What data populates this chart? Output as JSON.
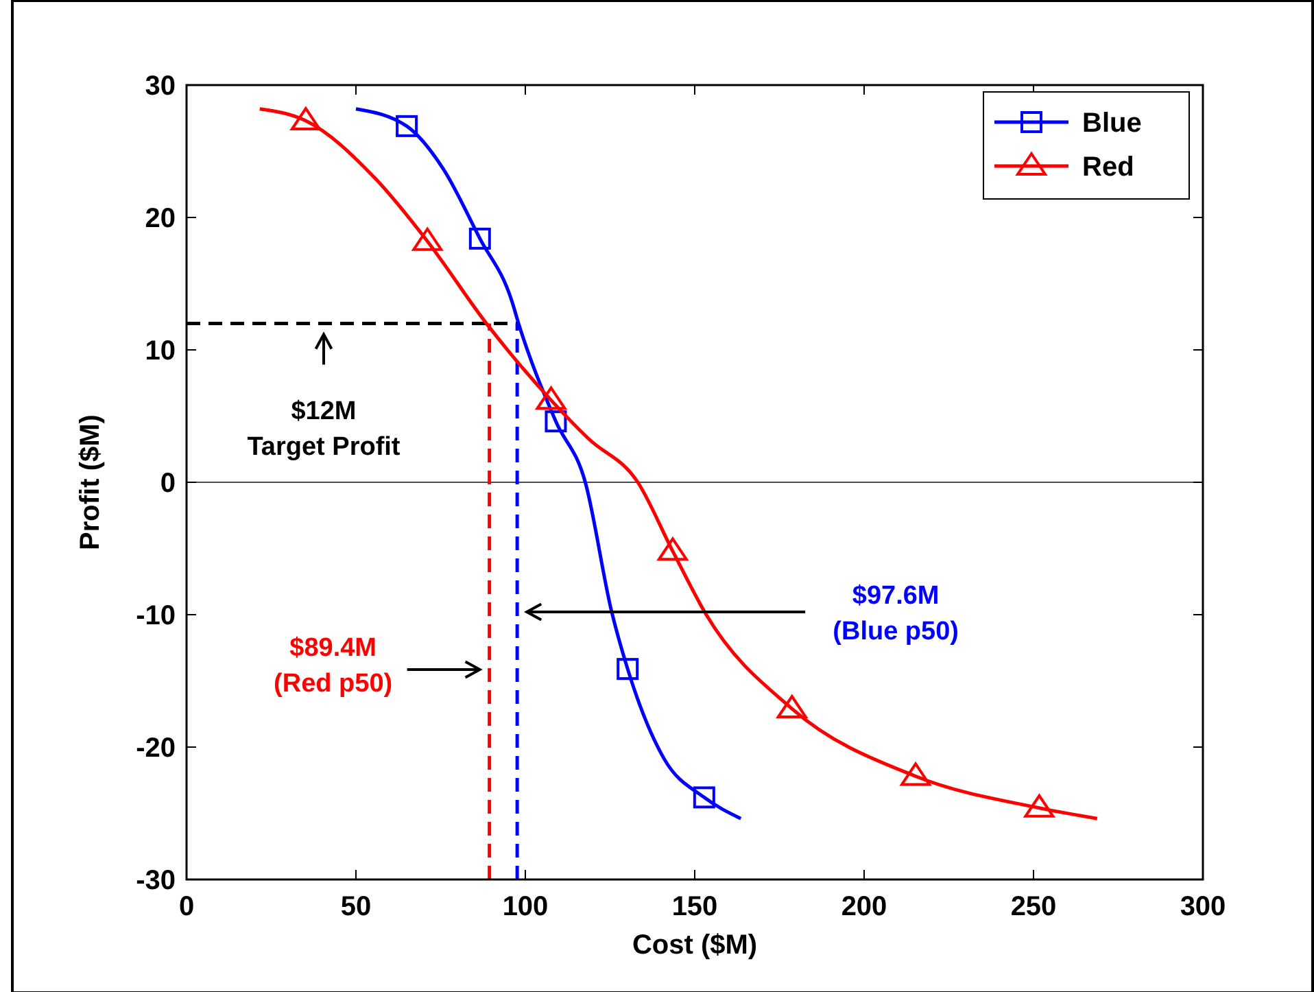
{
  "chart_data": {
    "type": "line",
    "xlabel": "Cost ($M)",
    "ylabel": "Profit ($M)",
    "xlim": [
      0,
      300
    ],
    "xticks": [
      0,
      50,
      100,
      150,
      200,
      250,
      300
    ],
    "ylim": [
      -30,
      30
    ],
    "yticks": [
      -30,
      -20,
      -10,
      0,
      10,
      20,
      30
    ],
    "grid": false,
    "legend": "top right",
    "line_style": "solid",
    "series": [
      {
        "name": "Blue",
        "color": "#0000ff",
        "x": [
          50,
          65,
          75.7,
          86.6,
          96,
          98,
          109,
          117.7,
          125.5,
          130.2,
          141,
          152.8,
          163.6
        ],
        "values": [
          28.2,
          26.9,
          23.7,
          18.4,
          13.7,
          12,
          4.6,
          0,
          -9.8,
          -14.1,
          -20.9,
          -23.8,
          -25.4
        ]
      },
      {
        "type": "scatter",
        "color": "#0000ff",
        "marker": "square",
        "x": [
          65,
          86.6,
          109,
          130.2,
          152.8
        ],
        "values": [
          26.9,
          18.4,
          4.6,
          -14.1,
          -23.8
        ]
      },
      {
        "name": "Red",
        "color": "#ff0000",
        "x": [
          21.6,
          35.2,
          55.5,
          71.1,
          88.5,
          107.6,
          118.6,
          133.2,
          143.5,
          153.4,
          178.7,
          215.2,
          251.7,
          268.8
        ],
        "values": [
          28.2,
          27.3,
          23,
          18.2,
          12,
          6.2,
          3.3,
          0,
          -5.2,
          -10,
          -17.1,
          -22.2,
          -24.6,
          -25.4
        ]
      },
      {
        "type": "scatter",
        "color": "#ff0000",
        "marker": "triangle",
        "x": [
          35.2,
          71.1,
          107.6,
          143.5,
          178.7,
          215.2,
          251.7
        ],
        "values": [
          27.3,
          18.2,
          6.2,
          -5.2,
          -17.1,
          -22.2,
          -24.6
        ]
      }
    ],
    "ref_lines": [
      {
        "axis": "y",
        "value": 0,
        "color": "#000000",
        "line_style": "solid"
      },
      {
        "axis": "y",
        "value": 12,
        "label": "$12M\nTarget Profit",
        "color": "#000000",
        "line_style": "dashed"
      },
      {
        "axis": "x",
        "value": 89.4,
        "label": "$89.4M\n(Red p50)",
        "color": "#ff0000",
        "line_style": "dashed"
      },
      {
        "axis": "x",
        "value": 97.6,
        "label": "$97.6M\n(Blue p50)",
        "color": "#0000ff",
        "line_style": "dashed"
      }
    ]
  }
}
